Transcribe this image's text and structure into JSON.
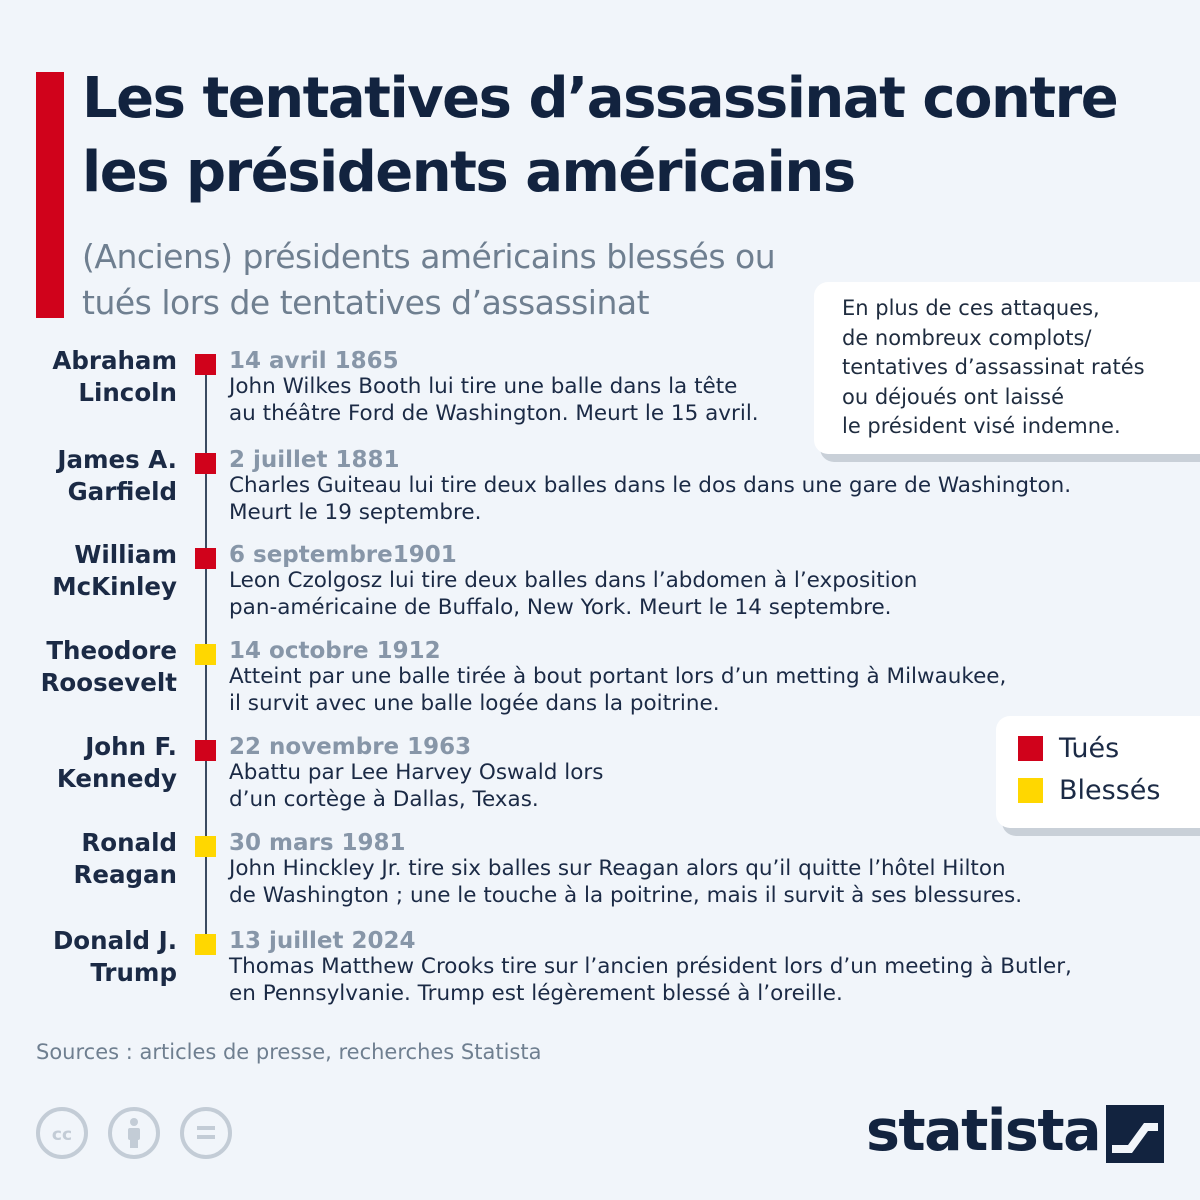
{
  "header": {
    "title": "Les tentatives d’assassinat contre les présidents américains",
    "subtitle": "(Anciens) présidents américains blessés ou tués lors de tentatives d’assassinat"
  },
  "note": {
    "text": "En plus de ces attaques,\nde nombreux complots/\ntentatives d’assassinat ratés\nou déjoués ont laissé\nle président visé indemne."
  },
  "colors": {
    "killed": "#d0021b",
    "wounded": "#ffd700",
    "accent": "#d0021b",
    "title": "#12233f"
  },
  "entries": [
    {
      "name": "Abraham\nLincoln",
      "date": "14 avril 1865",
      "status": "killed",
      "description": "John Wilkes Booth lui tire une balle dans la tête\nau théâtre Ford de Washington. Meurt le 15 avril."
    },
    {
      "name": "James A.\nGarfield",
      "date": "2 juillet 1881",
      "status": "killed",
      "description": "Charles Guiteau lui tire deux balles dans le dos dans une gare de Washington.\nMeurt le 19 septembre."
    },
    {
      "name": "William\nMcKinley",
      "date": "6 septembre1901",
      "status": "killed",
      "description": "Leon Czolgosz lui tire deux balles dans l’abdomen à l’exposition\npan-américaine de Buffalo, New York. Meurt le 14 septembre."
    },
    {
      "name": "Theodore\nRoosevelt",
      "date": "14 octobre 1912",
      "status": "wounded",
      "description": "Atteint par une balle tirée à bout portant lors d’un metting à Milwaukee,\nil survit avec une balle logée dans la poitrine."
    },
    {
      "name": "John F.\nKennedy",
      "date": "22 novembre 1963",
      "status": "killed",
      "description": "Abattu par Lee Harvey Oswald lors\nd’un cortège à Dallas, Texas."
    },
    {
      "name": "Ronald\nReagan",
      "date": "30 mars 1981",
      "status": "wounded",
      "description": "John Hinckley Jr. tire six balles sur Reagan alors qu’il quitte l’hôtel Hilton\nde Washington ; une le touche à la poitrine, mais il survit à ses blessures."
    },
    {
      "name": "Donald J.\nTrump",
      "date": "13 juillet 2024",
      "status": "wounded",
      "description": "Thomas Matthew Crooks tire sur l’ancien président lors d’un meeting à Butler,\nen Pennsylvanie. Trump est légèrement blessé à l’oreille."
    }
  ],
  "legend": {
    "killed_label": "Tués",
    "wounded_label": "Blessés"
  },
  "footer": {
    "sources": "Sources : articles de presse, recherches Statista",
    "logo": "statista",
    "license_icons": [
      "cc-icon",
      "attribution-icon",
      "no-derivatives-icon"
    ]
  }
}
